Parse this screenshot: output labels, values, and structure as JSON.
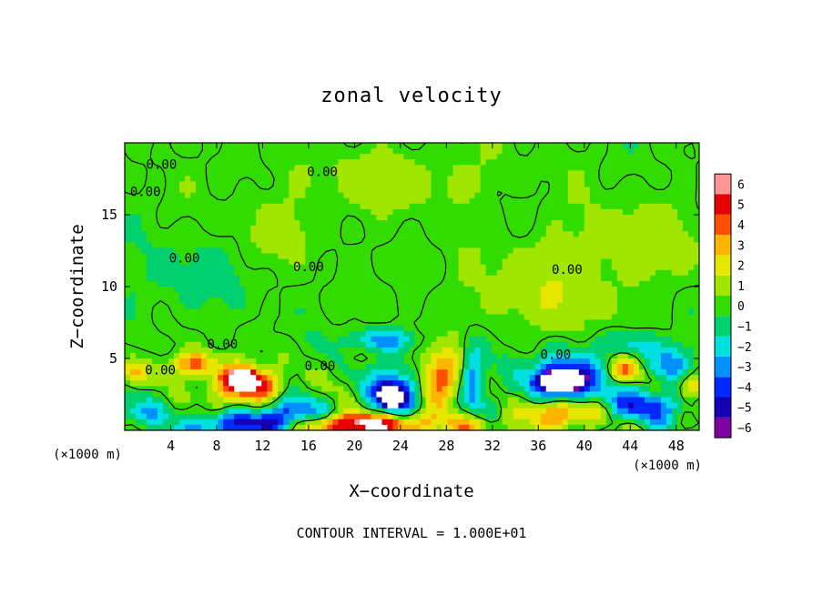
{
  "chart_data": {
    "type": "heatmap",
    "title": "zonal velocity",
    "xlabel": "X−coordinate",
    "ylabel": "Z−coordinate",
    "x_unit_left": "(×1000 m)",
    "x_unit_right": "(×1000 m)",
    "xlim": [
      0,
      50
    ],
    "ylim": [
      0,
      20
    ],
    "x_ticks": [
      4,
      8,
      12,
      16,
      20,
      24,
      28,
      32,
      36,
      40,
      44,
      48
    ],
    "y_ticks": [
      5,
      10,
      15
    ],
    "x_tick_labels": [
      "4",
      "8",
      "12",
      "16",
      "20",
      "24",
      "28",
      "32",
      "36",
      "40",
      "44",
      "48"
    ],
    "y_tick_labels": [
      "5",
      "10",
      "15"
    ],
    "contour_interval_text": "CONTOUR INTERVAL = 1.000E+01",
    "colorbar": {
      "min": -6,
      "max": 6,
      "ticks": [
        6,
        5,
        4,
        3,
        2,
        1,
        0,
        -1,
        -2,
        -3,
        -4,
        -5,
        -6
      ],
      "tick_labels": [
        "6",
        "5",
        "4",
        "3",
        "2",
        "1",
        "0",
        "−1",
        "−2",
        "−3",
        "−4",
        "−5",
        "−6"
      ],
      "colors": [
        "#7f00a0",
        "#1400b4",
        "#0028ff",
        "#0090ff",
        "#00e0e0",
        "#00d070",
        "#32dc00",
        "#a0e600",
        "#e6e600",
        "#ffb400",
        "#ff5000",
        "#e60000",
        "#ff9696"
      ]
    },
    "contour_labels": [
      {
        "text": "0.00",
        "x": 3.2,
        "y": 18.5
      },
      {
        "text": "0.00",
        "x": 1.8,
        "y": 16.6
      },
      {
        "text": "0.00",
        "x": 17.2,
        "y": 18.0
      },
      {
        "text": "0.00",
        "x": 5.2,
        "y": 12.0
      },
      {
        "text": "0.00",
        "x": 16.0,
        "y": 11.4
      },
      {
        "text": "0.00",
        "x": 38.5,
        "y": 11.2
      },
      {
        "text": "0.00",
        "x": 8.5,
        "y": 6.0
      },
      {
        "text": "0.00",
        "x": 3.1,
        "y": 4.2
      },
      {
        "text": "0.00",
        "x": 17.0,
        "y": 4.5
      },
      {
        "text": "0.00",
        "x": 37.5,
        "y": 5.3
      }
    ],
    "field_features": [
      {
        "value": 4.5,
        "x": 10.5,
        "y": 3.0,
        "sx": 2.2,
        "sy": 0.9
      },
      {
        "value": 6.0,
        "x": 10.2,
        "y": 3.6,
        "sx": 1.0,
        "sy": 0.5
      },
      {
        "value": 4.0,
        "x": 6.0,
        "y": 4.6,
        "sx": 1.4,
        "sy": 0.6
      },
      {
        "value": -4.5,
        "x": 10.0,
        "y": 0.4,
        "sx": 3.2,
        "sy": 0.6
      },
      {
        "value": 5.0,
        "x": 23.0,
        "y": 0.5,
        "sx": 2.8,
        "sy": 0.6
      },
      {
        "value": 4.0,
        "x": 18.5,
        "y": 0.3,
        "sx": 2.5,
        "sy": 0.5
      },
      {
        "value": -4.5,
        "x": 23.5,
        "y": 2.5,
        "sx": 1.8,
        "sy": 1.3
      },
      {
        "value": -6.0,
        "x": 23.2,
        "y": 2.4,
        "sx": 0.7,
        "sy": 0.5
      },
      {
        "value": 4.0,
        "x": 27.5,
        "y": 3.5,
        "sx": 1.6,
        "sy": 1.4
      },
      {
        "value": -4.0,
        "x": 30.3,
        "y": 3.6,
        "sx": 0.8,
        "sy": 1.6
      },
      {
        "value": -5.0,
        "x": 38.2,
        "y": 3.6,
        "sx": 2.4,
        "sy": 1.1
      },
      {
        "value": -6.0,
        "x": 38.0,
        "y": 3.4,
        "sx": 1.3,
        "sy": 0.5
      },
      {
        "value": 4.0,
        "x": 38.5,
        "y": 1.2,
        "sx": 2.2,
        "sy": 0.7
      },
      {
        "value": -4.0,
        "x": 45.0,
        "y": 1.7,
        "sx": 2.5,
        "sy": 0.8
      },
      {
        "value": 4.0,
        "x": 43.5,
        "y": 4.2,
        "sx": 1.0,
        "sy": 0.6
      },
      {
        "value": -3.0,
        "x": 47.5,
        "y": 4.6,
        "sx": 1.6,
        "sy": 0.8
      },
      {
        "value": -3.0,
        "x": 22.5,
        "y": 6.3,
        "sx": 2.0,
        "sy": 0.5
      },
      {
        "value": 3.0,
        "x": 49.3,
        "y": 3.0,
        "sx": 0.8,
        "sy": 0.7
      },
      {
        "value": 3.0,
        "x": 0.6,
        "y": 4.0,
        "sx": 0.8,
        "sy": 0.6
      },
      {
        "value": -3.0,
        "x": 1.2,
        "y": 1.2,
        "sx": 1.5,
        "sy": 0.7
      },
      {
        "value": -3.5,
        "x": 14.5,
        "y": 1.4,
        "sx": 2.0,
        "sy": 0.7
      },
      {
        "value": 2.5,
        "x": 30.5,
        "y": 0.4,
        "sx": 2.0,
        "sy": 0.5
      },
      {
        "value": -2.0,
        "x": 44.5,
        "y": 6.0,
        "sx": 2.0,
        "sy": 0.6
      },
      {
        "value": 1.2,
        "x": 36.0,
        "y": 9.5,
        "sx": 4.5,
        "sy": 2.0
      },
      {
        "value": 1.0,
        "x": 24.0,
        "y": 17.5,
        "sx": 6.0,
        "sy": 1.5
      },
      {
        "value": 1.0,
        "x": 44.0,
        "y": 13.0,
        "sx": 5.0,
        "sy": 2.0
      },
      {
        "value": -0.8,
        "x": 5.0,
        "y": 10.5,
        "sx": 4.0,
        "sy": 2.0
      },
      {
        "value": 0.8,
        "x": 14.0,
        "y": 14.0,
        "sx": 3.0,
        "sy": 1.5
      }
    ]
  }
}
